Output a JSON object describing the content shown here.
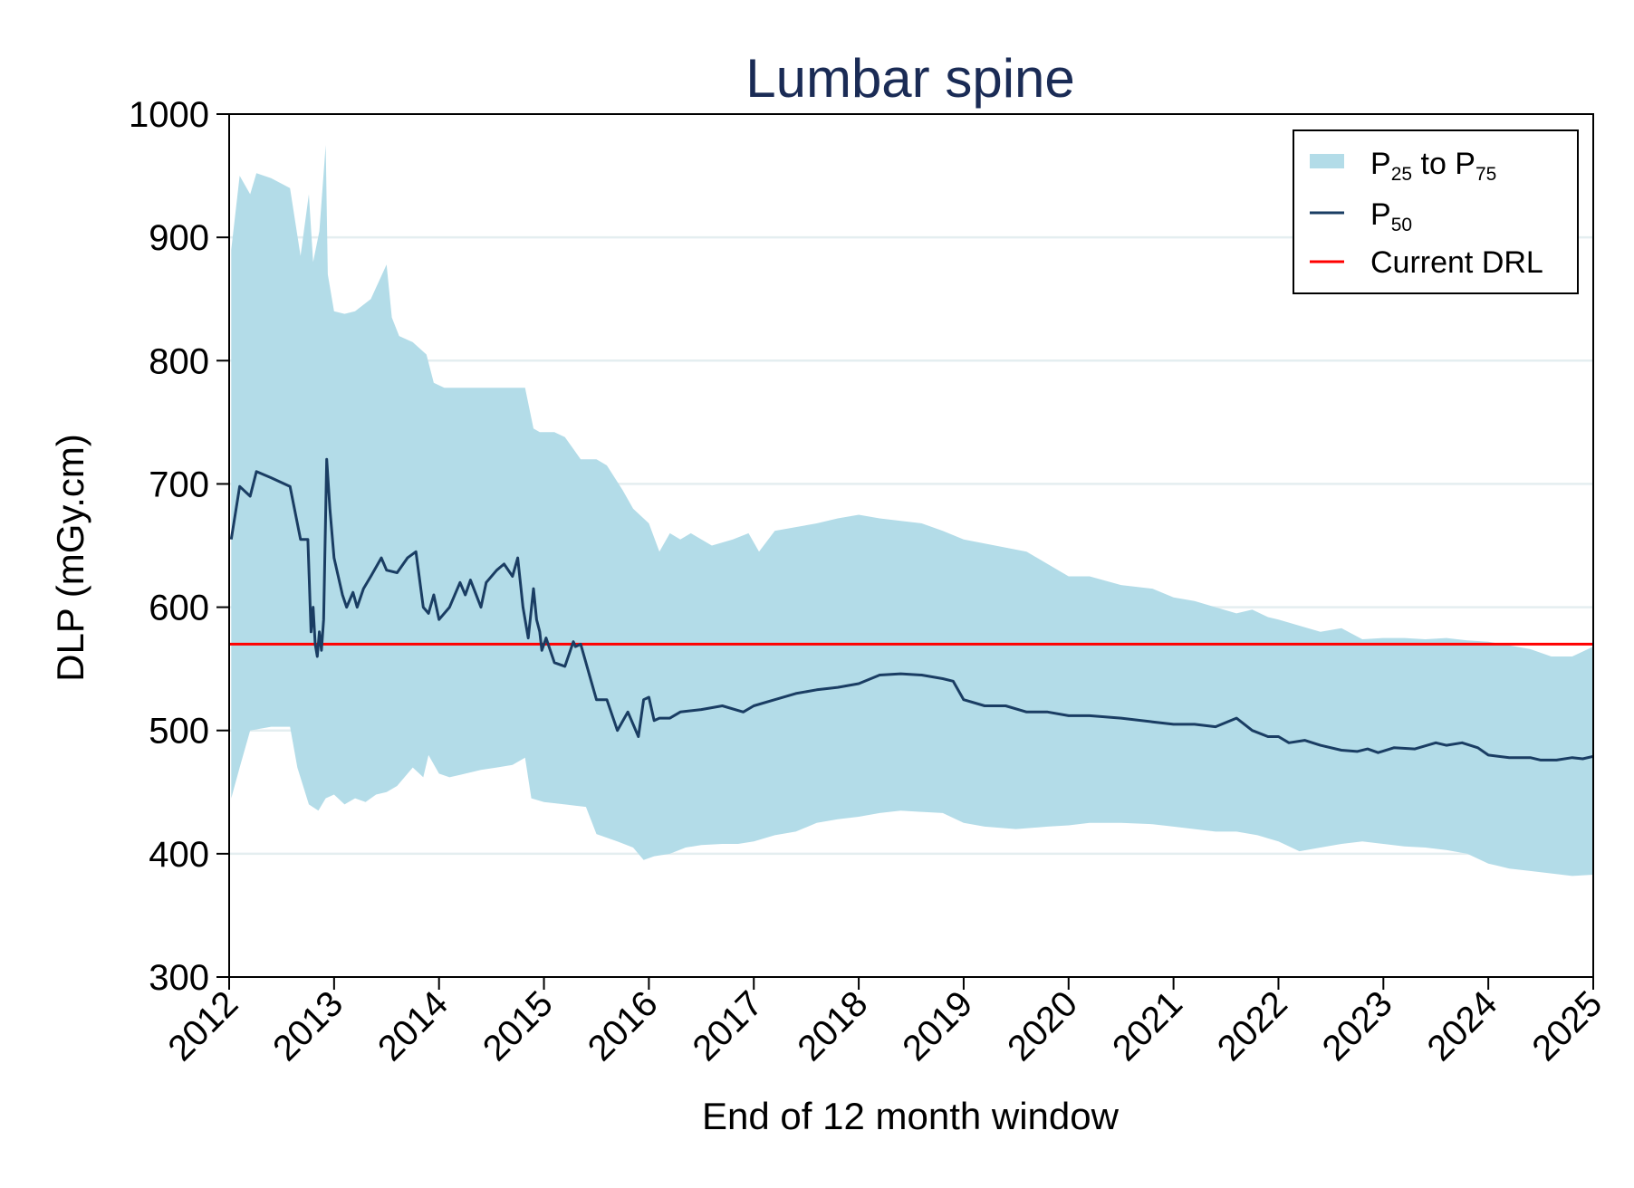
{
  "chart_data": {
    "type": "line",
    "title": "Lumbar spine",
    "xlabel": "End of 12 month window",
    "ylabel": "DLP (mGy.cm)",
    "xlim": [
      2012,
      2025
    ],
    "ylim": [
      300,
      1000
    ],
    "x_ticks": [
      "2012",
      "2013",
      "2014",
      "2015",
      "2016",
      "2017",
      "2018",
      "2019",
      "2020",
      "2021",
      "2022",
      "2023",
      "2024",
      "2025"
    ],
    "y_ticks": [
      "300",
      "400",
      "500",
      "600",
      "700",
      "800",
      "900",
      "1000"
    ],
    "legend": {
      "placement": "top-right",
      "band": {
        "prefix": "P",
        "sub1": "25",
        "middle": " to P",
        "sub2": "75"
      },
      "median": {
        "prefix": "P",
        "sub": "50"
      },
      "drl": {
        "label": "Current DRL"
      }
    },
    "colors": {
      "band": "#b3dce8",
      "median": "#1a3d63",
      "drl": "#ff0000",
      "grid": "#e4eef0",
      "title": "#1a2b55"
    },
    "drl_value": 570,
    "series": [
      {
        "name": "P25 to P75 (upper, P75)",
        "x": [
          2012.02,
          2012.1,
          2012.2,
          2012.26,
          2012.4,
          2012.58,
          2012.68,
          2012.76,
          2012.8,
          2012.86,
          2012.92,
          2012.94,
          2013.0,
          2013.1,
          2013.2,
          2013.35,
          2013.5,
          2013.55,
          2013.62,
          2013.75,
          2013.88,
          2013.95,
          2014.05,
          2014.2,
          2014.3,
          2014.5,
          2014.7,
          2014.82,
          2014.9,
          2014.96,
          2015.1,
          2015.2,
          2015.35,
          2015.5,
          2015.6,
          2015.75,
          2015.85,
          2016.0,
          2016.1,
          2016.2,
          2016.3,
          2016.4,
          2016.6,
          2016.8,
          2016.95,
          2017.05,
          2017.2,
          2017.4,
          2017.6,
          2017.8,
          2018.0,
          2018.2,
          2018.4,
          2018.6,
          2018.8,
          2019.0,
          2019.3,
          2019.6,
          2019.8,
          2020.0,
          2020.2,
          2020.5,
          2020.8,
          2021.0,
          2021.2,
          2021.4,
          2021.6,
          2021.75,
          2021.9,
          2022.0,
          2022.2,
          2022.4,
          2022.6,
          2022.8,
          2023.0,
          2023.2,
          2023.4,
          2023.6,
          2023.8,
          2024.0,
          2024.2,
          2024.4,
          2024.6,
          2024.8,
          2025.0
        ],
        "values": [
          890,
          950,
          935,
          952,
          948,
          940,
          885,
          935,
          880,
          905,
          975,
          870,
          840,
          838,
          840,
          850,
          878,
          835,
          820,
          815,
          805,
          782,
          778,
          778,
          778,
          778,
          778,
          778,
          745,
          742,
          742,
          738,
          720,
          720,
          715,
          695,
          680,
          668,
          645,
          660,
          655,
          660,
          650,
          655,
          660,
          645,
          662,
          665,
          668,
          672,
          675,
          672,
          670,
          668,
          662,
          655,
          650,
          645,
          635,
          625,
          625,
          618,
          615,
          608,
          605,
          600,
          595,
          598,
          592,
          590,
          585,
          580,
          583,
          574,
          575,
          575,
          574,
          575,
          573,
          572,
          569,
          566,
          560,
          560,
          568
        ]
      },
      {
        "name": "P25 to P75 (lower, P25)",
        "x": [
          2012.02,
          2012.1,
          2012.2,
          2012.4,
          2012.58,
          2012.65,
          2012.76,
          2012.85,
          2012.92,
          2013.0,
          2013.1,
          2013.2,
          2013.3,
          2013.4,
          2013.5,
          2013.6,
          2013.75,
          2013.85,
          2013.9,
          2014.0,
          2014.1,
          2014.25,
          2014.4,
          2014.55,
          2014.7,
          2014.82,
          2014.88,
          2015.0,
          2015.2,
          2015.4,
          2015.5,
          2015.7,
          2015.85,
          2015.95,
          2016.05,
          2016.2,
          2016.35,
          2016.5,
          2016.7,
          2016.85,
          2017.0,
          2017.2,
          2017.4,
          2017.6,
          2017.8,
          2018.0,
          2018.2,
          2018.4,
          2018.6,
          2018.8,
          2019.0,
          2019.2,
          2019.5,
          2019.8,
          2020.0,
          2020.2,
          2020.5,
          2020.8,
          2021.0,
          2021.2,
          2021.4,
          2021.6,
          2021.8,
          2022.0,
          2022.2,
          2022.4,
          2022.6,
          2022.8,
          2023.0,
          2023.2,
          2023.4,
          2023.6,
          2023.8,
          2024.0,
          2024.2,
          2024.4,
          2024.6,
          2024.8,
          2025.0
        ],
        "values": [
          445,
          470,
          500,
          503,
          503,
          470,
          440,
          435,
          445,
          448,
          440,
          445,
          442,
          448,
          450,
          455,
          470,
          462,
          480,
          465,
          462,
          465,
          468,
          470,
          472,
          478,
          445,
          442,
          440,
          438,
          416,
          410,
          405,
          395,
          398,
          400,
          405,
          407,
          408,
          408,
          410,
          415,
          418,
          425,
          428,
          430,
          433,
          435,
          434,
          433,
          425,
          422,
          420,
          422,
          423,
          425,
          425,
          424,
          422,
          420,
          418,
          418,
          415,
          410,
          402,
          405,
          408,
          410,
          408,
          406,
          405,
          403,
          400,
          392,
          388,
          386,
          384,
          382,
          383
        ]
      },
      {
        "name": "P50",
        "x": [
          2012.02,
          2012.1,
          2012.2,
          2012.26,
          2012.4,
          2012.58,
          2012.68,
          2012.75,
          2012.78,
          2012.8,
          2012.82,
          2012.84,
          2012.86,
          2012.88,
          2012.9,
          2012.93,
          2012.96,
          2013.0,
          2013.08,
          2013.12,
          2013.18,
          2013.22,
          2013.28,
          2013.35,
          2013.45,
          2013.5,
          2013.6,
          2013.7,
          2013.78,
          2013.85,
          2013.9,
          2013.95,
          2014.0,
          2014.1,
          2014.2,
          2014.25,
          2014.3,
          2014.4,
          2014.45,
          2014.55,
          2014.62,
          2014.7,
          2014.75,
          2014.8,
          2014.85,
          2014.9,
          2014.93,
          2014.96,
          2014.98,
          2015.02,
          2015.1,
          2015.2,
          2015.28,
          2015.3,
          2015.35,
          2015.45,
          2015.5,
          2015.6,
          2015.7,
          2015.8,
          2015.9,
          2015.95,
          2016.0,
          2016.05,
          2016.1,
          2016.2,
          2016.3,
          2016.5,
          2016.7,
          2016.9,
          2017.0,
          2017.2,
          2017.4,
          2017.6,
          2017.8,
          2018.0,
          2018.2,
          2018.4,
          2018.6,
          2018.8,
          2018.9,
          2019.0,
          2019.2,
          2019.4,
          2019.6,
          2019.8,
          2020.0,
          2020.2,
          2020.5,
          2020.8,
          2021.0,
          2021.2,
          2021.4,
          2021.6,
          2021.75,
          2021.9,
          2022.0,
          2022.1,
          2022.25,
          2022.4,
          2022.6,
          2022.75,
          2022.85,
          2022.95,
          2023.1,
          2023.3,
          2023.5,
          2023.6,
          2023.75,
          2023.9,
          2024.0,
          2024.2,
          2024.4,
          2024.5,
          2024.55,
          2024.65,
          2024.8,
          2024.9,
          2025.0
        ],
        "values": [
          655,
          698,
          690,
          710,
          705,
          698,
          655,
          655,
          580,
          600,
          570,
          560,
          580,
          565,
          590,
          720,
          680,
          640,
          610,
          600,
          612,
          600,
          615,
          625,
          640,
          630,
          628,
          640,
          645,
          600,
          595,
          610,
          590,
          600,
          620,
          610,
          622,
          600,
          620,
          630,
          635,
          625,
          640,
          600,
          575,
          615,
          590,
          580,
          565,
          575,
          555,
          552,
          572,
          568,
          570,
          540,
          525,
          525,
          500,
          515,
          495,
          525,
          527,
          508,
          510,
          510,
          515,
          517,
          520,
          515,
          520,
          525,
          530,
          533,
          535,
          538,
          545,
          546,
          545,
          542,
          540,
          525,
          520,
          520,
          515,
          515,
          512,
          512,
          510,
          507,
          505,
          505,
          503,
          510,
          500,
          495,
          495,
          490,
          492,
          488,
          484,
          483,
          485,
          482,
          486,
          485,
          490,
          488,
          490,
          486,
          480,
          478,
          478,
          476,
          476,
          476,
          478,
          477,
          479
        ]
      }
    ]
  }
}
